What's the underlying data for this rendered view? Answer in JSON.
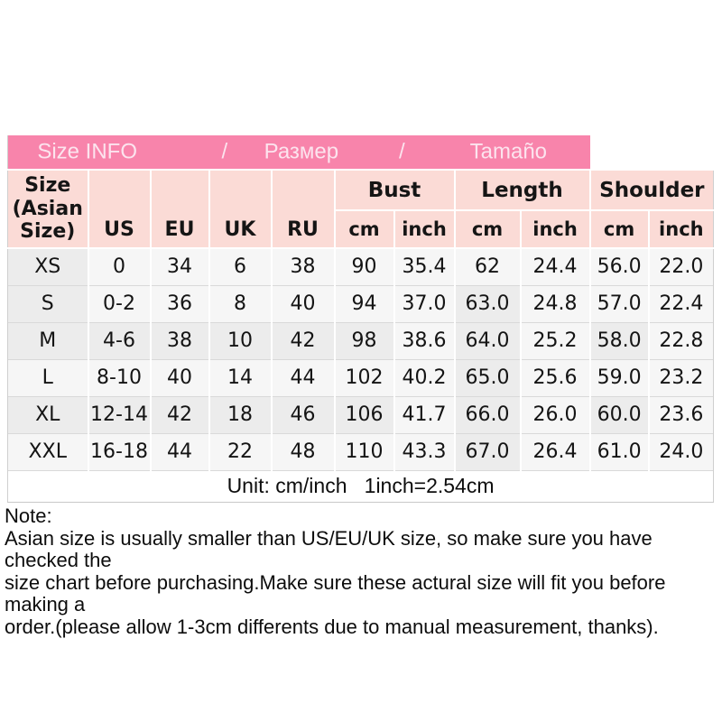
{
  "chart_data": {
    "type": "table",
    "title": "Size INFO / Размер / Tamaño",
    "columns": [
      "Size (Asian Size)",
      "US",
      "EU",
      "UK",
      "RU",
      "Bust cm",
      "Bust inch",
      "Length cm",
      "Length inch",
      "Shoulder cm",
      "Shoulder inch"
    ],
    "rows": [
      [
        "XS",
        "0",
        "34",
        "6",
        "38",
        "90",
        "35.4",
        "62",
        "24.4",
        "56.0",
        "22.0"
      ],
      [
        "S",
        "0-2",
        "36",
        "8",
        "40",
        "94",
        "37.0",
        "63.0",
        "24.8",
        "57.0",
        "22.4"
      ],
      [
        "M",
        "4-6",
        "38",
        "10",
        "42",
        "98",
        "38.6",
        "64.0",
        "25.2",
        "58.0",
        "22.8"
      ],
      [
        "L",
        "8-10",
        "40",
        "14",
        "44",
        "102",
        "40.2",
        "65.0",
        "25.6",
        "59.0",
        "23.2"
      ],
      [
        "XL",
        "12-14",
        "42",
        "18",
        "46",
        "106",
        "41.7",
        "66.0",
        "26.0",
        "60.0",
        "23.6"
      ],
      [
        "XXL",
        "16-18",
        "44",
        "22",
        "48",
        "110",
        "43.3",
        "67.0",
        "26.4",
        "61.0",
        "24.0"
      ]
    ],
    "footer": "Unit: cm/inch   1inch=2.54cm",
    "layout_hints": {
      "grid": "on",
      "header_groups_span": 2
    }
  },
  "band": {
    "segments": [
      "Size INFO",
      "/",
      "Размер",
      "/",
      "Tamaño"
    ]
  },
  "table": {
    "header": {
      "size_label": "Size\n(Asian\nSize)",
      "cols": [
        "US",
        "EU",
        "UK",
        "RU"
      ],
      "groups": [
        "Bust",
        "Length",
        "Shoulder"
      ],
      "units": [
        "cm",
        "inch",
        "cm",
        "inch",
        "cm",
        "inch"
      ]
    },
    "rows": [
      [
        "XS",
        "0",
        "34",
        "6",
        "38",
        "90",
        "35.4",
        "62",
        "24.4",
        "56.0",
        "22.0"
      ],
      [
        "S",
        "0-2",
        "36",
        "8",
        "40",
        "94",
        "37.0",
        "63.0",
        "24.8",
        "57.0",
        "22.4"
      ],
      [
        "M",
        "4-6",
        "38",
        "10",
        "42",
        "98",
        "38.6",
        "64.0",
        "25.2",
        "58.0",
        "22.8"
      ],
      [
        "L",
        "8-10",
        "40",
        "14",
        "44",
        "102",
        "40.2",
        "65.0",
        "25.6",
        "59.0",
        "23.2"
      ],
      [
        "XL",
        "12-14",
        "42",
        "18",
        "46",
        "106",
        "41.7",
        "66.0",
        "26.0",
        "60.0",
        "23.6"
      ],
      [
        "XXL",
        "16-18",
        "44",
        "22",
        "48",
        "110",
        "43.3",
        "67.0",
        "26.4",
        "61.0",
        "24.0"
      ]
    ],
    "unit_note": "Unit: cm/inch   1inch=2.54cm"
  },
  "note": {
    "title": "Note:",
    "lines": [
      "Asian size is usually smaller than US/EU/UK size, so make sure you have checked the",
      "size chart before purchasing.Make sure these actural size will fit you before making a",
      "order.(please allow 1-3cm differents due to manual measurement, thanks)."
    ]
  },
  "colors": {
    "band_bg": "#f884ab",
    "band_text": "#fce4ee",
    "header_bg": "#fbdbd6",
    "row_light": "#f6f6f6",
    "row_dark": "#ececec",
    "gridline": "#d9d9d9"
  }
}
